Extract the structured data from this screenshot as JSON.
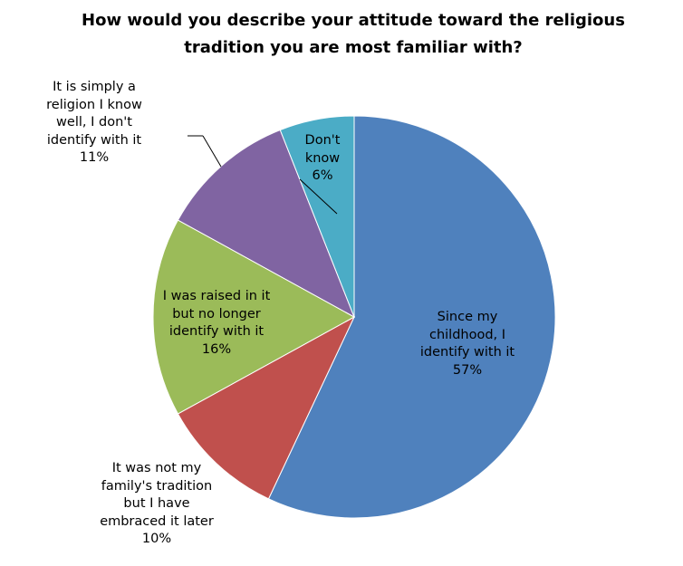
{
  "chart_data": {
    "type": "pie",
    "title_lines": [
      "How would you describe your attitude toward the religious",
      "tradition you are most familiar with?"
    ],
    "slices": [
      {
        "label_lines": [
          "Since my",
          "childhood, I",
          "identify with it",
          "57%"
        ],
        "value": 57,
        "color": "#4f81bd"
      },
      {
        "label_lines": [
          "It was not my",
          "family's tradition",
          "but I have",
          "embraced it later",
          "10%"
        ],
        "value": 10,
        "color": "#c0504d"
      },
      {
        "label_lines": [
          "I was raised in it",
          "but no longer",
          "identify with it",
          "16%"
        ],
        "value": 16,
        "color": "#9bbb59"
      },
      {
        "label_lines": [
          "It is simply a",
          "religion I know",
          "well, I don't",
          "identify with it",
          "11%"
        ],
        "value": 11,
        "color": "#8064a2"
      },
      {
        "label_lines": [
          "Don't",
          "know",
          "6%"
        ],
        "value": 6,
        "color": "#4bacc6"
      }
    ]
  }
}
